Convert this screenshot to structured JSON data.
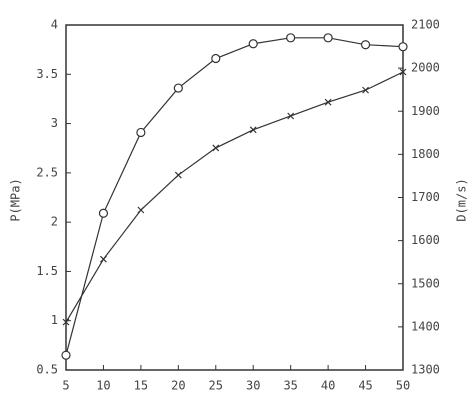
{
  "chart_data": {
    "type": "line",
    "x": [
      5,
      10,
      15,
      20,
      25,
      30,
      35,
      40,
      45,
      50
    ],
    "xlim": [
      5,
      50
    ],
    "xticks": [
      5,
      10,
      15,
      20,
      25,
      30,
      35,
      40,
      45,
      50
    ],
    "ylabel": "P(MPa)",
    "y2label": "D(m/s)",
    "ylim": [
      0.5,
      4
    ],
    "yticks": [
      0.5,
      1,
      1.5,
      2,
      2.5,
      3,
      3.5,
      4
    ],
    "y2lim": [
      1300,
      2100
    ],
    "y2ticks": [
      1300,
      1400,
      1500,
      1600,
      1700,
      1800,
      1900,
      2000,
      2100
    ],
    "grid": false,
    "series": [
      {
        "color": "#333333",
        "marker": "circle",
        "values": [
          0.65,
          2.09,
          2.91,
          3.36,
          3.66,
          3.81,
          3.87,
          3.87,
          3.8,
          3.78
        ]
      },
      {
        "color": "#333333",
        "marker": "x",
        "axis": "y2",
        "values": [
          1411,
          1557,
          1671,
          1752,
          1815,
          1857,
          1889,
          1921,
          1949,
          1991
        ]
      }
    ]
  }
}
